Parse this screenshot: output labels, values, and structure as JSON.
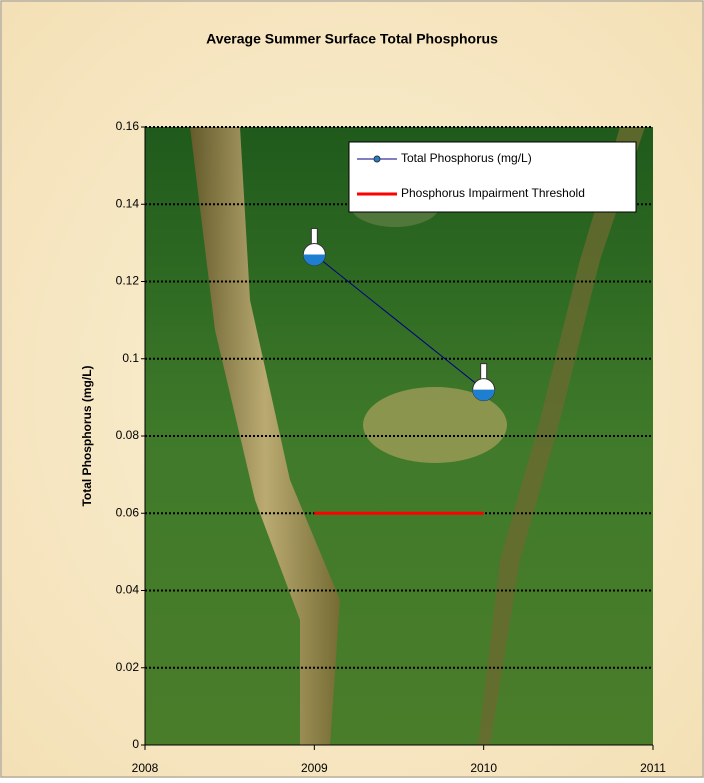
{
  "chart_data": {
    "type": "line",
    "title": "Average Summer Surface Total Phosphorus",
    "y_label": "Total Phosphorus (mg/L)",
    "x": [
      2009,
      2010
    ],
    "series": [
      {
        "name": "Total Phosphorus (mg/L)",
        "color": "#000080",
        "values": [
          0.127,
          0.092
        ]
      },
      {
        "name": "Phosphorus Impairment Threshold",
        "color": "#ff0000",
        "values": [
          0.06,
          0.06
        ]
      }
    ],
    "xlim": [
      2008,
      2011
    ],
    "xticks": [
      2008,
      2009,
      2010,
      2011
    ],
    "ylim": [
      0,
      0.16
    ],
    "yticks": [
      0,
      0.02,
      0.04,
      0.06,
      0.08,
      0.1,
      0.12,
      0.14,
      0.16
    ],
    "grid": true,
    "legend": "top-right"
  }
}
